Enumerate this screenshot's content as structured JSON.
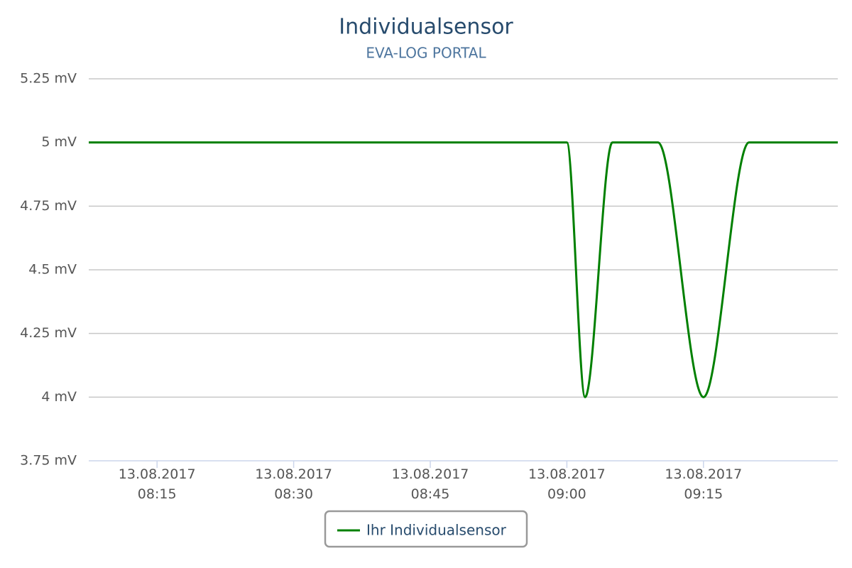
{
  "chart_data": {
    "type": "line",
    "title": "Individualsensor",
    "subtitle": "EVA-LOG PORTAL",
    "x": [
      "2017-08-13T08:07:30",
      "2017-08-13T09:00:00",
      "2017-08-13T09:02:00",
      "2017-08-13T09:05:00",
      "2017-08-13T09:10:00",
      "2017-08-13T09:15:00",
      "2017-08-13T09:20:00",
      "2017-08-13T09:29:45"
    ],
    "series": [
      {
        "name": "Ihr Individualsensor",
        "color": "#008000",
        "values": [
          5,
          5,
          4,
          5,
          5,
          4,
          5,
          5
        ]
      }
    ],
    "xlim": [
      "2017-08-13T08:07:30",
      "2017-08-13T09:29:45"
    ],
    "xticks": [
      {
        "value": "2017-08-13T08:15:00",
        "label": "13.08.2017\n08:15"
      },
      {
        "value": "2017-08-13T08:30:00",
        "label": "13.08.2017\n08:30"
      },
      {
        "value": "2017-08-13T08:45:00",
        "label": "13.08.2017\n08:45"
      },
      {
        "value": "2017-08-13T09:00:00",
        "label": "13.08.2017\n09:00"
      },
      {
        "value": "2017-08-13T09:15:00",
        "label": "13.08.2017\n09:15"
      }
    ],
    "ylim": [
      3.75,
      5.25
    ],
    "yticks": [
      {
        "value": 3.75,
        "label": "3.75 mV"
      },
      {
        "value": 4,
        "label": "4 mV"
      },
      {
        "value": 4.25,
        "label": "4.25 mV"
      },
      {
        "value": 4.5,
        "label": "4.5 mV"
      },
      {
        "value": 4.75,
        "label": "4.75 mV"
      },
      {
        "value": 5,
        "label": "5 mV"
      },
      {
        "value": 5.25,
        "label": "5.25 mV"
      }
    ],
    "grid": true,
    "legend": "bottom"
  }
}
